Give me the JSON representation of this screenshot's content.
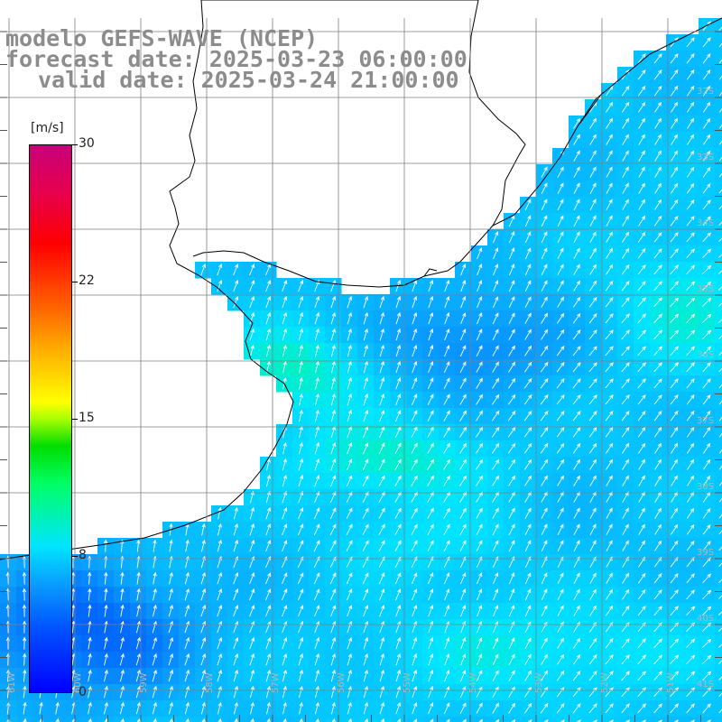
{
  "title": {
    "line1": "modelo GEFS-WAVE (NCEP)",
    "line2": "forecast date: 2025-03-23 06:00:00",
    "line3": "valid date: 2025-03-24 21:00:00"
  },
  "colorbar": {
    "unit": "[m/s]",
    "ticks": [
      "30",
      "22",
      "15",
      "8",
      "0"
    ],
    "colors": [
      "#0000ff",
      "#0055ff",
      "#0a9fff",
      "#00e5ff",
      "#00ff66",
      "#00dd00",
      "#ffff00",
      "#ff6600",
      "#ff0000",
      "#c8007a"
    ]
  },
  "map": {
    "variable": "wind speed and direction",
    "land_color": "#ffffff",
    "coastline_color": "#000000",
    "gridline_color": "#7f7f7f",
    "arrow_color": "#ffffff",
    "lat_labels": [
      "32S",
      "33S",
      "34S",
      "35S",
      "36S",
      "37S",
      "38S",
      "39S",
      "40S",
      "41S"
    ],
    "lon_labels": [
      "61W",
      "60W",
      "59W",
      "58W",
      "57W",
      "56W",
      "55W",
      "54W",
      "53W",
      "52W",
      "51W"
    ]
  }
}
